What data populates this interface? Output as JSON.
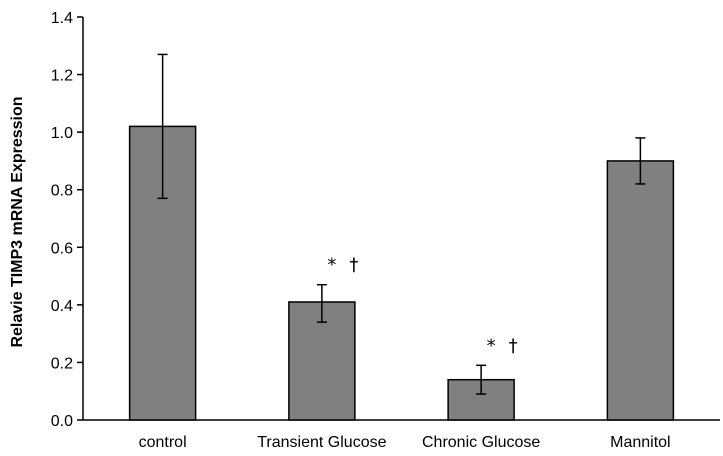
{
  "chart_data": {
    "type": "bar",
    "categories": [
      "control",
      "Transient Glucose",
      "Chronic Glucose",
      "Mannitol"
    ],
    "values": [
      1.02,
      0.41,
      0.14,
      0.9
    ],
    "error_bars": [
      {
        "low": 0.77,
        "high": 1.27
      },
      {
        "low": 0.34,
        "high": 0.47
      },
      {
        "low": 0.09,
        "high": 0.19
      },
      {
        "low": 0.82,
        "high": 0.98
      }
    ],
    "annotations": [
      "",
      "* †",
      "* †",
      ""
    ],
    "ylabel": "Relavie TIMP3 mRNA Expression",
    "ylim": [
      0,
      1.4
    ],
    "yticks": [
      "0.0",
      "0.2",
      "0.4",
      "0.6",
      "0.8",
      "1.0",
      "1.2",
      "1.4"
    ],
    "bar_color": "#808080",
    "grid": false
  }
}
